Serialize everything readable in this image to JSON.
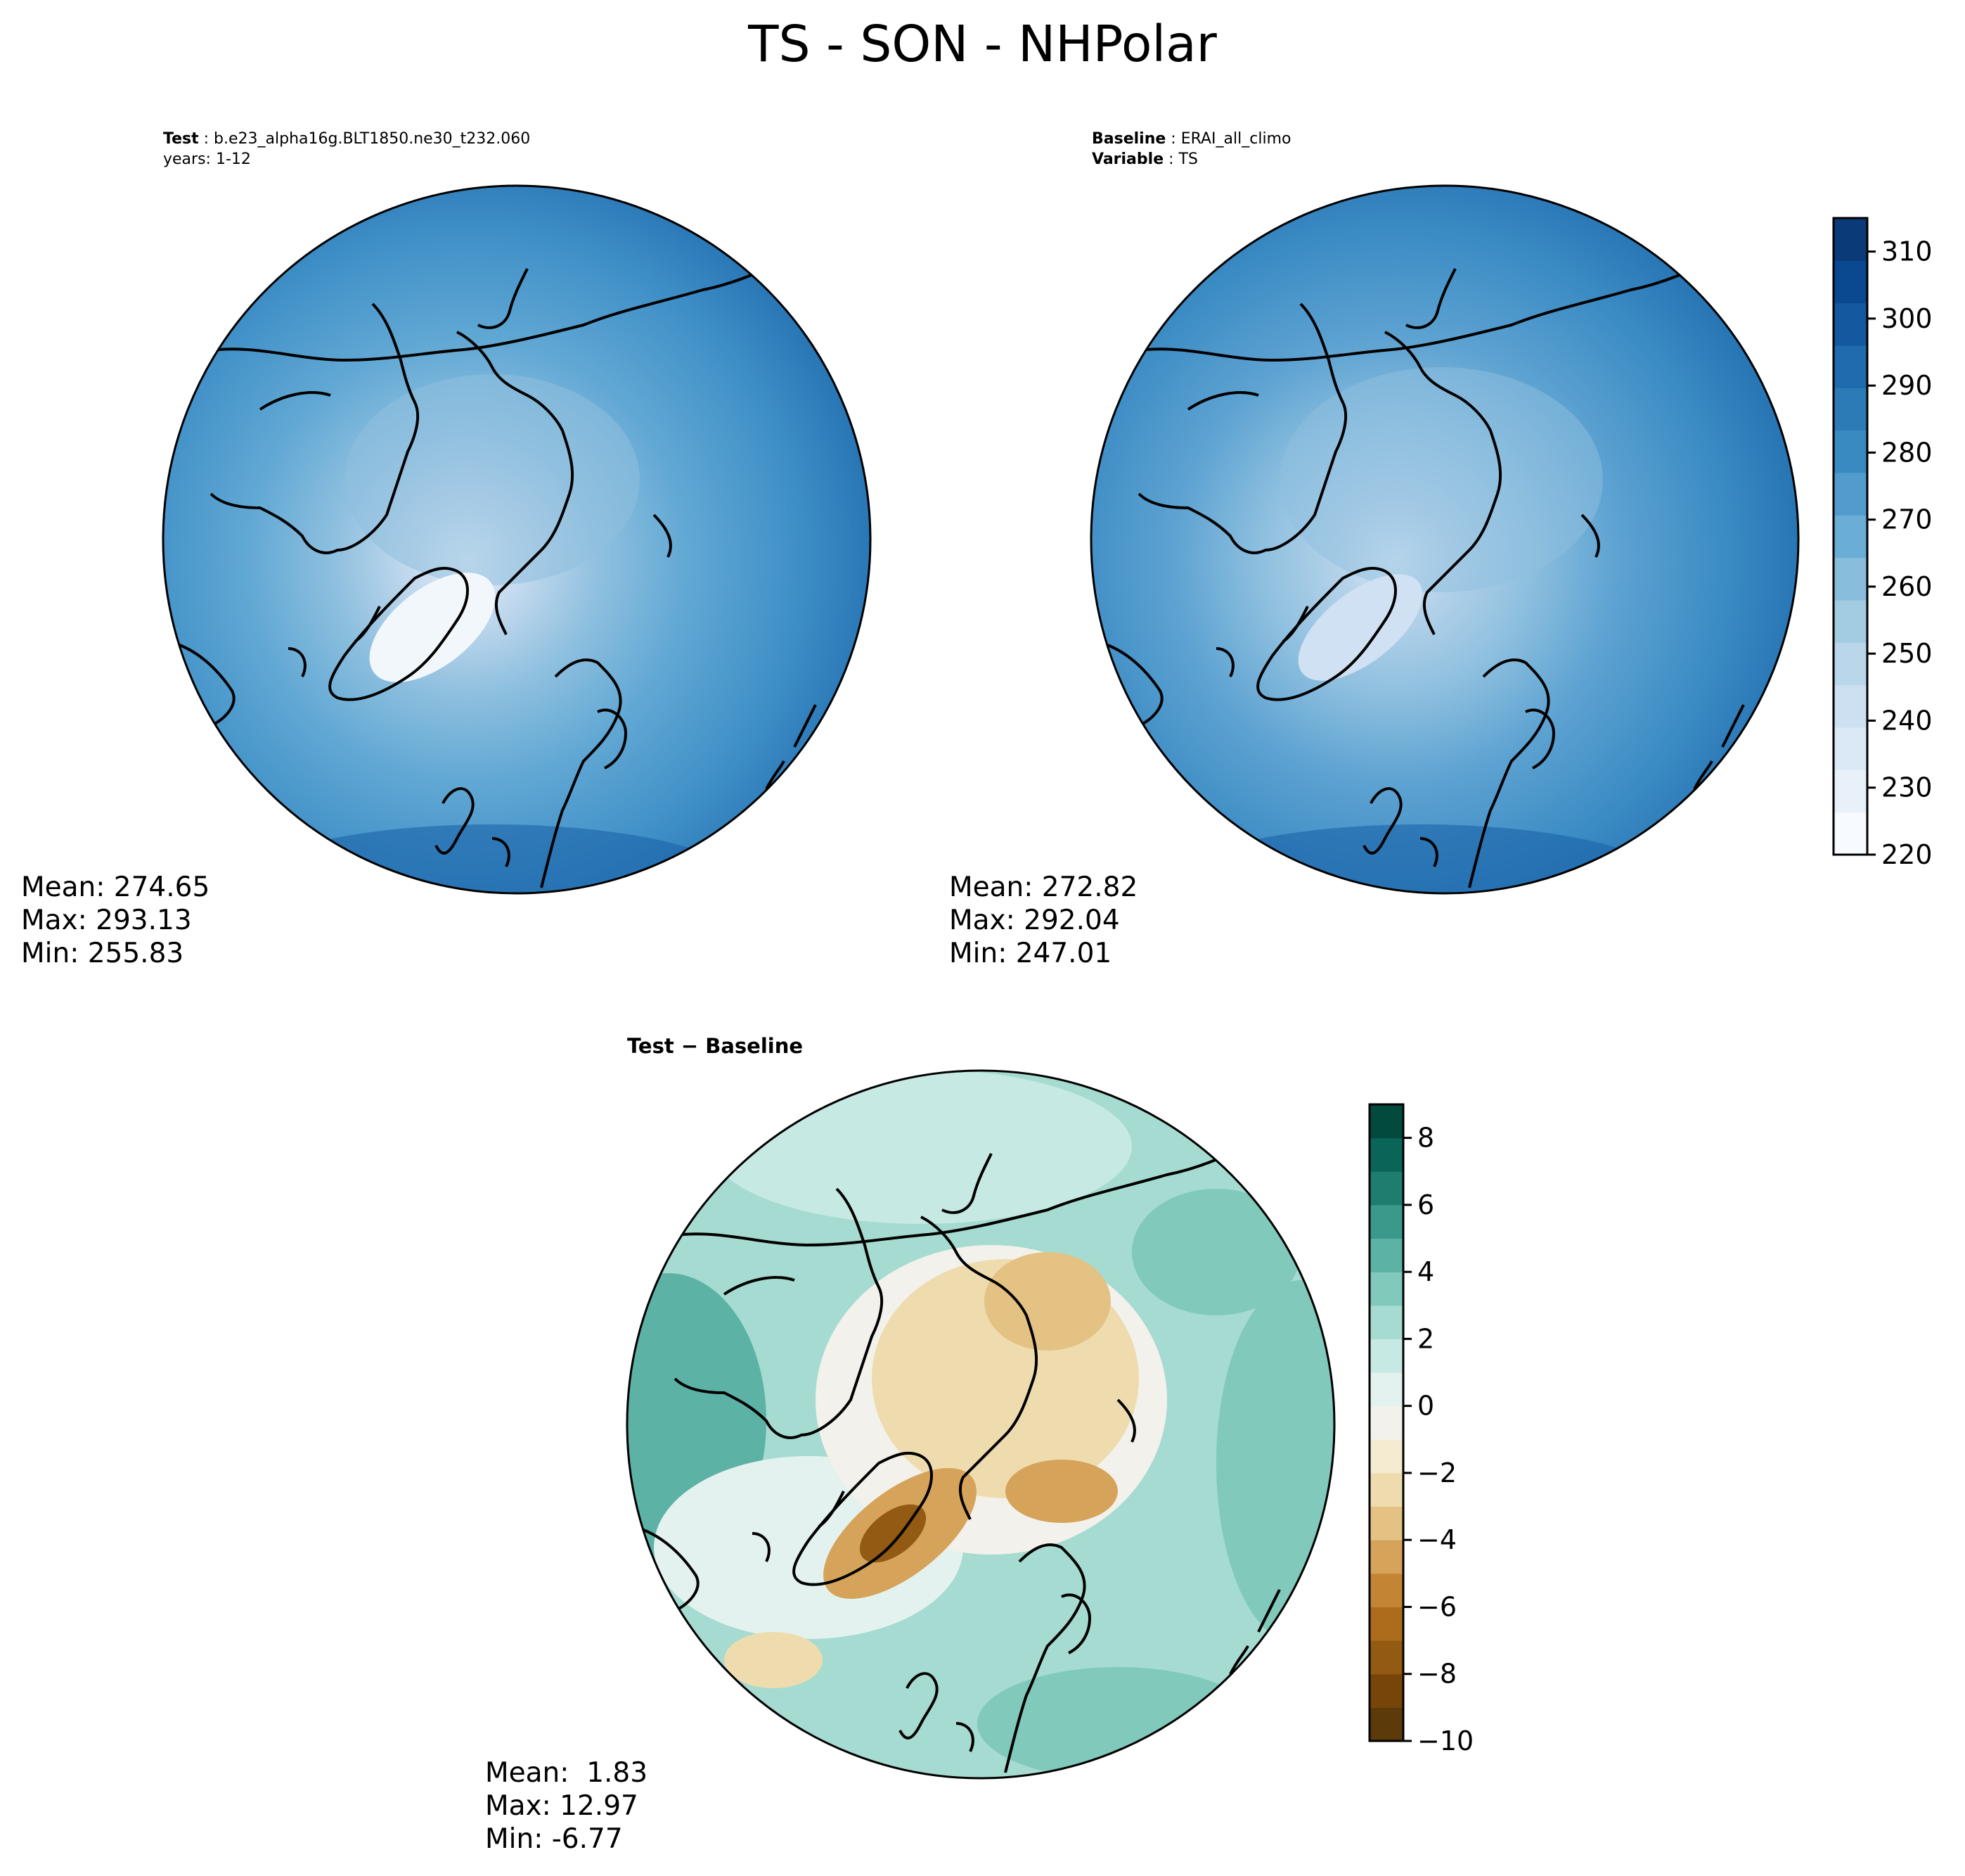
{
  "title": "TS - SON - NHPolar",
  "panels": {
    "test": {
      "header": {
        "line1_key": "Test",
        "line1_val": "b.e23_alpha16g.BLT1850.ne30_t232.060",
        "line2": "years: 1-12"
      },
      "stats": {
        "mean": "Mean: 274.65",
        "max": "Max: 293.13",
        "min": "Min: 255.83"
      }
    },
    "baseline": {
      "header": {
        "line1_key": "Baseline",
        "line1_val": "ERAI_all_climo",
        "line2_key": "Variable",
        "line2_val": "TS"
      },
      "stats": {
        "mean": "Mean: 272.82",
        "max": "Max: 292.04",
        "min": "Min: 247.01"
      }
    },
    "diff": {
      "subtitle": "Test − Baseline",
      "stats": {
        "mean": "Mean:  1.83",
        "max": "Max: 12.97",
        "min": "Min: -6.77"
      }
    }
  },
  "colorbars": {
    "temperature": {
      "range": [
        220,
        315
      ],
      "ticks": [
        "220",
        "230",
        "240",
        "250",
        "260",
        "270",
        "280",
        "290",
        "300",
        "310"
      ],
      "colors": [
        "#f7fbff",
        "#e8f1fa",
        "#dbe9f6",
        "#cde0f1",
        "#bad6eb",
        "#a3cbe2",
        "#88bedc",
        "#6aaed6",
        "#519ccc",
        "#3a8ac2",
        "#2c7bb6",
        "#1f6bad",
        "#13599f",
        "#0a4990",
        "#0a3a78"
      ]
    },
    "difference": {
      "range": [
        -10,
        9
      ],
      "ticks": [
        "−10",
        "−8",
        "−6",
        "−4",
        "−2",
        "0",
        "2",
        "4",
        "6",
        "8"
      ],
      "colors": [
        "#5c3a0a",
        "#774509",
        "#925a12",
        "#ad6c1b",
        "#c38534",
        "#d6a35a",
        "#e3c283",
        "#efdcae",
        "#f5ebd1",
        "#f2f1eb",
        "#e4f2ef",
        "#c7e9e3",
        "#a6dbd1",
        "#80c9bb",
        "#5cb2a4",
        "#3a998a",
        "#1e7d6f",
        "#0a6457",
        "#034a3e"
      ]
    }
  }
}
